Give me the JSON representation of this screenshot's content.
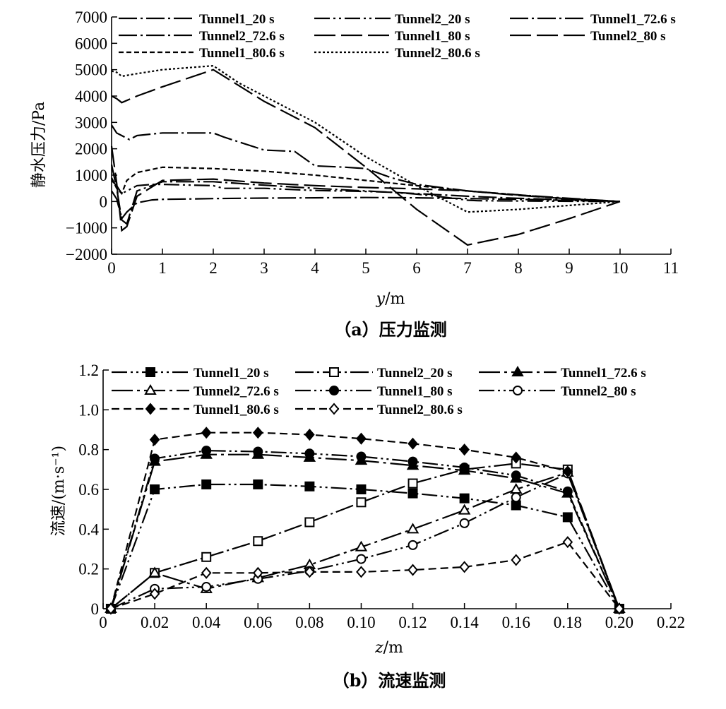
{
  "figure": {
    "panel_a_caption": "（a）压力监测",
    "panel_b_caption": "（b）流速监测"
  },
  "chart_data": [
    {
      "type": "line",
      "caption": "（a）压力监测",
      "xlabel_var": "y",
      "xlabel_unit": "/m",
      "ylabel": "静水压力/Pa",
      "xlim": [
        0,
        11
      ],
      "ylim": [
        -2000,
        7000
      ],
      "xticks": [
        0,
        1,
        2,
        3,
        4,
        5,
        6,
        7,
        8,
        9,
        10,
        11
      ],
      "yticks": [
        -2000,
        -1000,
        0,
        1000,
        2000,
        3000,
        4000,
        5000,
        6000,
        7000
      ],
      "ytick_labels": [
        "−2000",
        "−1000",
        "0",
        "1000",
        "2000",
        "3000",
        "4000",
        "5000",
        "6000",
        "7000"
      ],
      "grid": false,
      "legend_position": "top",
      "series": [
        {
          "name": "Tunnel1_20 s",
          "dash": "dashdot",
          "x": [
            0,
            0.1,
            0.2,
            0.3,
            0.5,
            0.8,
            1,
            2,
            3,
            4,
            5,
            6,
            7,
            8,
            9,
            10
          ],
          "y": [
            400,
            100,
            -650,
            -400,
            -50,
            60,
            80,
            110,
            130,
            140,
            150,
            140,
            110,
            80,
            40,
            0
          ]
        },
        {
          "name": "Tunnel2_20 s",
          "dash": "dashdotdot",
          "x": [
            0,
            0.1,
            0.2,
            0.3,
            0.5,
            0.8,
            1,
            2,
            2.2,
            3,
            3.6,
            4,
            5,
            5.5,
            6,
            6.6,
            7,
            7.2,
            8,
            9,
            10
          ],
          "y": [
            800,
            600,
            300,
            400,
            600,
            650,
            650,
            600,
            500,
            500,
            450,
            420,
            380,
            350,
            280,
            150,
            50,
            30,
            20,
            10,
            0
          ]
        },
        {
          "name": "Tunnel1_72.6 s",
          "dash": "dashdot",
          "x": [
            0,
            0.1,
            0.2,
            0.35,
            0.5,
            1,
            2,
            2.2,
            3,
            3.6,
            4,
            4.6,
            5,
            5.5,
            6,
            7,
            8,
            9,
            10
          ],
          "y": [
            2900,
            2600,
            2500,
            2350,
            2500,
            2600,
            2600,
            2450,
            1950,
            1900,
            1350,
            1300,
            1250,
            900,
            650,
            400,
            250,
            120,
            0
          ]
        },
        {
          "name": "Tunnel2_72.6 s",
          "dash": "dashdot",
          "x": [
            0,
            0.1,
            0.2,
            0.3,
            0.5,
            1,
            2,
            3,
            4,
            5,
            6,
            7,
            8,
            9,
            10
          ],
          "y": [
            1400,
            500,
            -700,
            -850,
            400,
            750,
            750,
            620,
            500,
            400,
            300,
            200,
            120,
            60,
            0
          ]
        },
        {
          "name": "Tunnel1_80 s",
          "dash": "longdash",
          "x": [
            0,
            0.1,
            0.2,
            0.3,
            0.5,
            1,
            2,
            3,
            4,
            5,
            6,
            7,
            8,
            9,
            10
          ],
          "y": [
            2100,
            700,
            -1100,
            -950,
            200,
            800,
            850,
            700,
            600,
            530,
            480,
            400,
            230,
            100,
            0
          ]
        },
        {
          "name": "Tunnel2_80 s",
          "dash": "longdash",
          "x": [
            0,
            0.1,
            0.2,
            0.5,
            1,
            2,
            3,
            4,
            5,
            6,
            7,
            8,
            9,
            10
          ],
          "y": [
            4000,
            3900,
            3750,
            4000,
            4350,
            5000,
            3800,
            2800,
            1300,
            -300,
            -1650,
            -1250,
            -650,
            0
          ]
        },
        {
          "name": "Tunnel1_80.6 s",
          "dash": "shortdash",
          "x": [
            0,
            0.1,
            0.2,
            0.3,
            0.5,
            1,
            2,
            3,
            4,
            5,
            6,
            7,
            8,
            9,
            10
          ],
          "y": [
            900,
            500,
            300,
            800,
            1100,
            1300,
            1250,
            1150,
            1000,
            800,
            600,
            400,
            250,
            100,
            0
          ]
        },
        {
          "name": "Tunnel2_80.6 s",
          "dash": "dotted",
          "x": [
            0,
            0.1,
            0.2,
            0.5,
            1,
            2,
            2.5,
            3,
            4,
            5,
            6,
            7,
            8,
            9,
            10
          ],
          "y": [
            4950,
            4900,
            4750,
            4850,
            5000,
            5150,
            4500,
            4000,
            3000,
            1700,
            600,
            -400,
            -300,
            -150,
            0
          ]
        }
      ]
    },
    {
      "type": "line",
      "caption": "（b）流速监测",
      "xlabel_var": "z",
      "xlabel_unit": "/m",
      "ylabel": "流速/(m·s⁻¹)",
      "xlim": [
        0,
        0.22
      ],
      "ylim": [
        0,
        1.2
      ],
      "xticks": [
        0,
        0.02,
        0.04,
        0.06,
        0.08,
        0.1,
        0.12,
        0.14,
        0.16,
        0.18,
        0.2,
        0.22
      ],
      "xtick_labels": [
        "0",
        "0.02",
        "0.04",
        "0.06",
        "0.08",
        "0.10",
        "0.12",
        "0.14",
        "0.16",
        "0.18",
        "0.20",
        "0.22"
      ],
      "yticks": [
        0,
        0.2,
        0.4,
        0.6,
        0.8,
        1.0,
        1.2
      ],
      "ytick_labels": [
        "0",
        "0.2",
        "0.4",
        "0.6",
        "0.8",
        "1.0",
        "1.2"
      ],
      "grid": false,
      "legend_position": "top",
      "x": [
        0.003,
        0.02,
        0.04,
        0.06,
        0.08,
        0.1,
        0.12,
        0.14,
        0.16,
        0.18,
        0.2
      ],
      "series": [
        {
          "name": "Tunnel1_20 s",
          "dash": "dashdotdot",
          "marker": "square-filled",
          "values": [
            0,
            0.6,
            0.625,
            0.625,
            0.615,
            0.6,
            0.58,
            0.555,
            0.52,
            0.46,
            0
          ]
        },
        {
          "name": "Tunnel2_20 s",
          "dash": "dashdot",
          "marker": "square-open",
          "values": [
            0,
            0.18,
            0.26,
            0.34,
            0.435,
            0.535,
            0.63,
            0.7,
            0.73,
            0.7,
            0
          ]
        },
        {
          "name": "Tunnel1_72.6 s",
          "dash": "longdashdot",
          "marker": "triangle-filled",
          "values": [
            0,
            0.74,
            0.775,
            0.775,
            0.76,
            0.745,
            0.72,
            0.695,
            0.655,
            0.58,
            0
          ]
        },
        {
          "name": "Tunnel2_72.6 s",
          "dash": "longdashdot",
          "marker": "triangle-open",
          "values": [
            0,
            0.18,
            0.1,
            0.155,
            0.22,
            0.31,
            0.4,
            0.495,
            0.6,
            0.685,
            0
          ]
        },
        {
          "name": "Tunnel1_80 s",
          "dash": "dashdotdot",
          "marker": "circle-filled",
          "values": [
            0,
            0.755,
            0.795,
            0.79,
            0.78,
            0.765,
            0.74,
            0.71,
            0.67,
            0.59,
            0
          ]
        },
        {
          "name": "Tunnel2_80 s",
          "dash": "dashdotdot",
          "marker": "circle-open",
          "values": [
            0,
            0.1,
            0.11,
            0.15,
            0.19,
            0.25,
            0.32,
            0.43,
            0.56,
            0.68,
            0
          ]
        },
        {
          "name": "Tunnel1_80.6 s",
          "dash": "dashed",
          "marker": "diamond-filled",
          "values": [
            0,
            0.85,
            0.885,
            0.885,
            0.875,
            0.855,
            0.83,
            0.8,
            0.76,
            0.69,
            0
          ]
        },
        {
          "name": "Tunnel2_80.6 s",
          "dash": "dashed",
          "marker": "diamond-open",
          "values": [
            0,
            0.075,
            0.18,
            0.18,
            0.185,
            0.185,
            0.195,
            0.21,
            0.245,
            0.335,
            0
          ]
        }
      ]
    }
  ]
}
